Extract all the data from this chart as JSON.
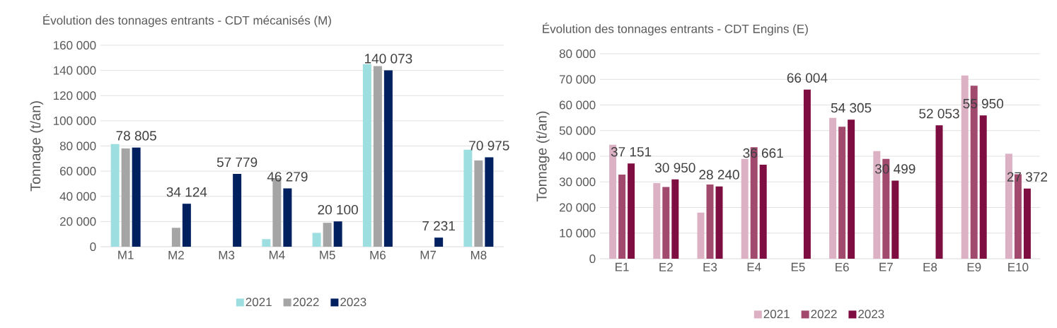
{
  "chart_data": [
    {
      "type": "bar",
      "title": "Évolution des tonnages entrants - CDT mécanisés (M)",
      "ylabel": "Tonnage (t/an)",
      "categories": [
        "M1",
        "M2",
        "M3",
        "M4",
        "M5",
        "M6",
        "M7",
        "M8"
      ],
      "series": [
        {
          "name": "2021",
          "color": "#9ddfe0",
          "values": [
            81500,
            null,
            null,
            6000,
            11000,
            145000,
            null,
            77000
          ]
        },
        {
          "name": "2022",
          "color": "#a5a5a5",
          "values": [
            78000,
            15000,
            null,
            54500,
            19000,
            143500,
            null,
            68500
          ]
        },
        {
          "name": "2023",
          "color": "#002060",
          "values": [
            78805,
            34124,
            57779,
            46279,
            20100,
            140073,
            7231,
            70975
          ],
          "value_labels": [
            "78 805",
            "34 124",
            "57 779",
            "46 279",
            "20 100",
            "140 073",
            "7 231",
            "70 975"
          ]
        }
      ],
      "ylim": [
        0,
        160000
      ],
      "yticks": [
        0,
        {
          "value": 20000,
          "label": "20 000"
        },
        {
          "value": 40000,
          "label": "40 000"
        },
        {
          "value": 60000,
          "label": "60 000"
        },
        {
          "value": 80000,
          "label": "80 000"
        },
        {
          "value": 100000,
          "label": "100 000"
        },
        {
          "value": 120000,
          "label": "120 000"
        },
        {
          "value": 140000,
          "label": "140 000"
        },
        {
          "value": 160000,
          "label": "160 000"
        }
      ],
      "grid": "y",
      "legend": "bottom"
    },
    {
      "type": "bar",
      "title": "Évolution des tonnages entrants - CDT Engins (E)",
      "ylabel": "Tonnage (t/an)",
      "categories": [
        "E1",
        "E2",
        "E3",
        "E4",
        "E5",
        "E6",
        "E7",
        "E8",
        "E9",
        "E10"
      ],
      "series": [
        {
          "name": "2021",
          "color": "#dcb1c3",
          "values": [
            44500,
            29500,
            18000,
            39000,
            null,
            55000,
            42000,
            null,
            71500,
            41000
          ]
        },
        {
          "name": "2022",
          "color": "#a14a6e",
          "values": [
            32800,
            28000,
            29000,
            43500,
            null,
            51500,
            39000,
            null,
            67500,
            33000
          ]
        },
        {
          "name": "2023",
          "color": "#7e0e41",
          "values": [
            37151,
            30950,
            28240,
            36661,
            66004,
            54305,
            30499,
            52053,
            55950,
            27372
          ],
          "value_labels": [
            "37 151",
            "30 950",
            "28 240",
            "36 661",
            "66 004",
            "54 305",
            "30 499",
            "52 053",
            "55 950",
            "27 372"
          ]
        }
      ],
      "ylim": [
        0,
        80000
      ],
      "yticks": [
        0,
        {
          "value": 10000,
          "label": "10 000"
        },
        {
          "value": 20000,
          "label": "20 000"
        },
        {
          "value": 30000,
          "label": "30 000"
        },
        {
          "value": 40000,
          "label": "40 000"
        },
        {
          "value": 50000,
          "label": "50 000"
        },
        {
          "value": 60000,
          "label": "60 000"
        },
        {
          "value": 70000,
          "label": "70 000"
        },
        {
          "value": 80000,
          "label": "80 000"
        }
      ],
      "grid": "y",
      "legend": "bottom"
    }
  ]
}
